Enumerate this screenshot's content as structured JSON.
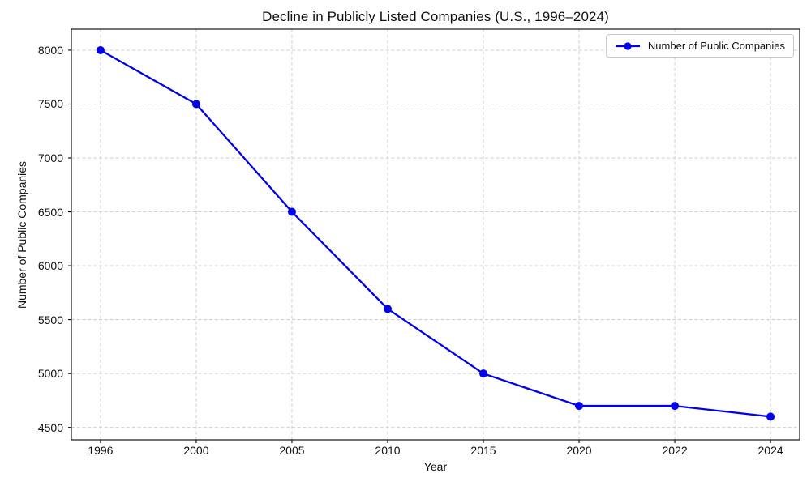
{
  "chart_data": {
    "type": "line",
    "title": "Decline in Publicly Listed Companies (U.S., 1996–2024)",
    "xlabel": "Year",
    "ylabel": "Number of Public Companies",
    "categories": [
      "1996",
      "2000",
      "2005",
      "2010",
      "2015",
      "2020",
      "2022",
      "2024"
    ],
    "series": [
      {
        "name": "Number of Public Companies",
        "values": [
          8000,
          7500,
          6500,
          5600,
          5000,
          4700,
          4700,
          4600
        ],
        "color": "#0000ee",
        "marker": "circle"
      }
    ],
    "y_ticks": [
      4500,
      5000,
      5500,
      6000,
      6500,
      7000,
      7500,
      8000
    ],
    "ylim": [
      4385,
      8195
    ],
    "grid": "dashed",
    "grid_color": "#c9c9c9",
    "axis_color": "#000000",
    "text_color": "#111111",
    "background_color": "#ffffff",
    "legend_position": "upper right"
  }
}
